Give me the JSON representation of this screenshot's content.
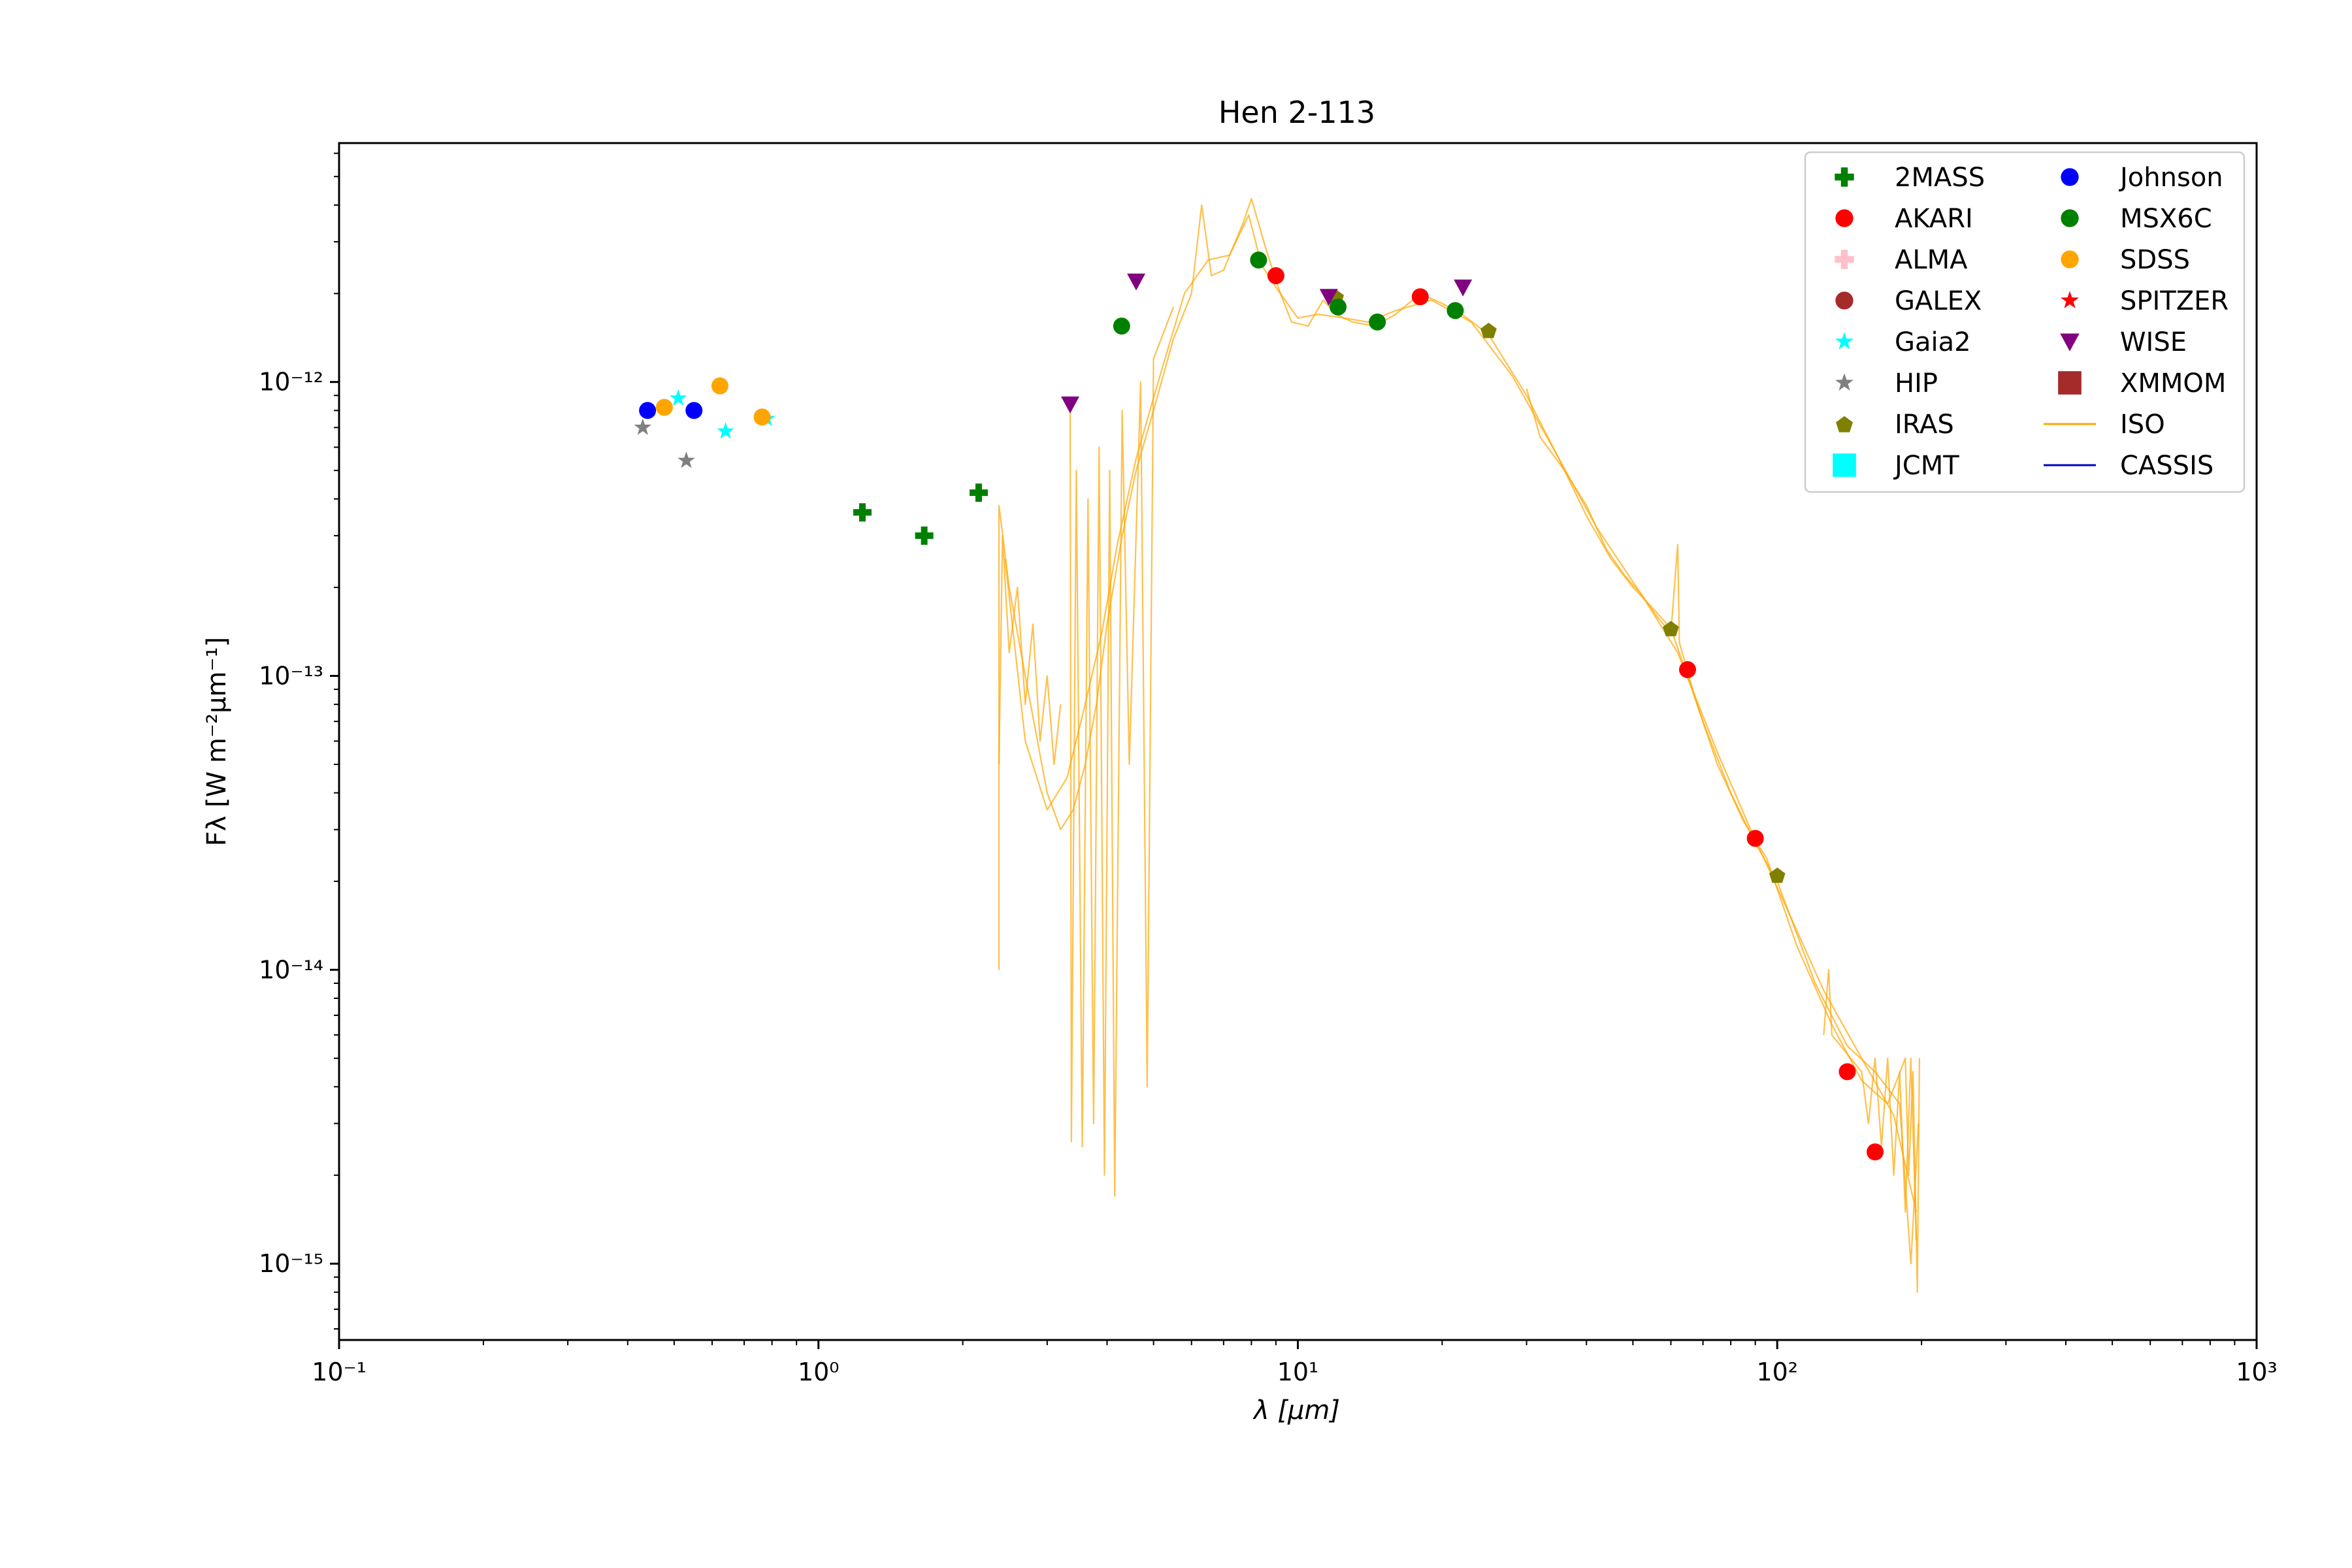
{
  "chart_data": {
    "type": "scatter",
    "title": "Hen 2-113",
    "xlabel": "λ [μm]",
    "ylabel": "Fλ [W m⁻²μm⁻¹]",
    "xscale": "log",
    "yscale": "log",
    "xlim": [
      0.1,
      1000
    ],
    "ylim": [
      5.5e-16,
      6.5e-12
    ],
    "x_ticks": [
      {
        "value": 0.1,
        "label": "10⁻¹"
      },
      {
        "value": 1,
        "label": "10⁰"
      },
      {
        "value": 10,
        "label": "10¹"
      },
      {
        "value": 100,
        "label": "10²"
      },
      {
        "value": 1000,
        "label": "10³"
      }
    ],
    "y_ticks": [
      {
        "value": 1e-15,
        "label": "10⁻¹⁵"
      },
      {
        "value": 1e-14,
        "label": "10⁻¹⁴"
      },
      {
        "value": 1e-13,
        "label": "10⁻¹³"
      },
      {
        "value": 1e-12,
        "label": "10⁻¹²"
      }
    ],
    "grid": false,
    "legend_position": "top-right",
    "legend_columns": 2,
    "series": [
      {
        "name": "2MASS",
        "marker": "plus",
        "color": "#008000",
        "points": [
          [
            1.235,
            3.6e-13
          ],
          [
            1.662,
            3e-13
          ],
          [
            2.159,
            4.2e-13
          ]
        ]
      },
      {
        "name": "AKARI",
        "marker": "circle",
        "color": "#ff0000",
        "points": [
          [
            9.0,
            2.3e-12
          ],
          [
            18.0,
            1.95e-12
          ],
          [
            65.0,
            1.05e-13
          ],
          [
            90.0,
            2.8e-14
          ],
          [
            140.0,
            4.5e-15
          ],
          [
            160.0,
            2.4e-15
          ]
        ]
      },
      {
        "name": "ALMA",
        "marker": "plus",
        "color": "#ffc0cb",
        "points": []
      },
      {
        "name": "GALEX",
        "marker": "circle",
        "color": "#a52a2a",
        "points": []
      },
      {
        "name": "Gaia2",
        "marker": "star",
        "color": "#00ffff",
        "points": [
          [
            0.51,
            8.8e-13
          ],
          [
            0.64,
            6.8e-13
          ],
          [
            0.78,
            7.5e-13
          ]
        ]
      },
      {
        "name": "HIP",
        "marker": "star",
        "color": "#808080",
        "points": [
          [
            0.43,
            7e-13
          ],
          [
            0.53,
            5.4e-13
          ]
        ]
      },
      {
        "name": "IRAS",
        "marker": "pentagon",
        "color": "#808000",
        "points": [
          [
            12.0,
            1.95e-12
          ],
          [
            25.0,
            1.5e-12
          ],
          [
            60.0,
            1.45e-13
          ],
          [
            100.0,
            2.1e-14
          ]
        ]
      },
      {
        "name": "JCMT",
        "marker": "square",
        "color": "#00ffff",
        "points": []
      },
      {
        "name": "Johnson",
        "marker": "circle",
        "color": "#0000ff",
        "points": [
          [
            0.44,
            8e-13
          ],
          [
            0.55,
            8e-13
          ]
        ]
      },
      {
        "name": "MSX6C",
        "marker": "circle",
        "color": "#008000",
        "points": [
          [
            4.29,
            1.55e-12
          ],
          [
            8.28,
            2.6e-12
          ],
          [
            12.13,
            1.8e-12
          ],
          [
            14.65,
            1.6e-12
          ],
          [
            21.3,
            1.75e-12
          ]
        ]
      },
      {
        "name": "SDSS",
        "marker": "circle",
        "color": "#ffa500",
        "points": [
          [
            0.477,
            8.2e-13
          ],
          [
            0.623,
            9.7e-13
          ],
          [
            0.763,
            7.6e-13
          ]
        ]
      },
      {
        "name": "SPITZER",
        "marker": "star",
        "color": "#ff0000",
        "points": []
      },
      {
        "name": "WISE",
        "marker": "triangle-down",
        "color": "#800080",
        "points": [
          [
            3.35,
            8.4e-13
          ],
          [
            4.6,
            2.2e-12
          ],
          [
            11.6,
            1.95e-12
          ],
          [
            22.1,
            2.1e-12
          ]
        ]
      },
      {
        "name": "XMMOM",
        "marker": "square",
        "color": "#a52a2a",
        "points": []
      },
      {
        "name": "ISO",
        "marker": "line",
        "color": "#ffa500",
        "lines": [
          [
            [
              2.38,
              1e-14
            ],
            [
              2.38,
              3.8e-13
            ],
            [
              2.5,
              2e-13
            ],
            [
              2.7,
              1e-13
            ],
            [
              3.0,
              4e-14
            ],
            [
              3.2,
              3e-14
            ],
            [
              3.4,
              3.5e-14
            ],
            [
              3.6,
              5e-14
            ],
            [
              3.8,
              8e-14
            ],
            [
              4.0,
              1.5e-13
            ],
            [
              4.3,
              3e-13
            ],
            [
              4.6,
              5e-13
            ],
            [
              5.0,
              8e-13
            ],
            [
              5.5,
              1.4e-12
            ],
            [
              6.0,
              2e-12
            ],
            [
              6.3,
              4e-12
            ],
            [
              6.6,
              2.3e-12
            ],
            [
              7.0,
              2.4e-12
            ],
            [
              7.7,
              3.5e-12
            ],
            [
              8.0,
              4.2e-12
            ],
            [
              8.6,
              2.8e-12
            ],
            [
              9.2,
              2e-12
            ],
            [
              9.7,
              1.6e-12
            ],
            [
              10.5,
              1.55e-12
            ],
            [
              11.3,
              1.9e-12
            ],
            [
              12.0,
              1.7e-12
            ],
            [
              13.0,
              1.6e-12
            ],
            [
              14.5,
              1.55e-12
            ],
            [
              16.0,
              1.7e-12
            ],
            [
              18.0,
              2e-12
            ],
            [
              20.0,
              1.85e-12
            ],
            [
              22.0,
              1.7e-12
            ],
            [
              25.0,
              1.45e-12
            ],
            [
              30.0,
              9e-13
            ],
            [
              35.0,
              5.5e-13
            ],
            [
              40.0,
              3.5e-13
            ],
            [
              45.0,
              2.5e-13
            ],
            [
              50.0,
              2e-13
            ],
            [
              55.0,
              1.7e-13
            ],
            [
              60.0,
              1.45e-13
            ],
            [
              70.0,
              7e-14
            ],
            [
              80.0,
              4e-14
            ],
            [
              90.0,
              2.7e-14
            ],
            [
              100.0,
              2e-14
            ],
            [
              120.0,
              9e-15
            ],
            [
              140.0,
              5.5e-15
            ],
            [
              160.0,
              4.5e-15
            ],
            [
              180.0,
              3.5e-15
            ],
            [
              190.0,
              1e-15
            ],
            [
              197.0,
              3e-15
            ]
          ],
          [
            [
              2.45,
              2.5e-13
            ],
            [
              2.7,
              6e-14
            ],
            [
              3.0,
              3.5e-14
            ],
            [
              3.3,
              4.5e-14
            ],
            [
              3.6,
              8e-14
            ],
            [
              3.9,
              1.4e-13
            ],
            [
              4.2,
              2.8e-13
            ],
            [
              4.6,
              5.5e-13
            ],
            [
              5.2,
              1.1e-12
            ],
            [
              5.8,
              2e-12
            ],
            [
              6.5,
              2.6e-12
            ],
            [
              7.2,
              2.7e-12
            ],
            [
              7.9,
              3.7e-12
            ],
            [
              8.4,
              2.5e-12
            ],
            [
              9.0,
              2.1e-12
            ],
            [
              10.0,
              1.65e-12
            ],
            [
              11.0,
              1.7e-12
            ],
            [
              12.5,
              1.65e-12
            ],
            [
              14.0,
              1.6e-12
            ],
            [
              16.0,
              1.75e-12
            ],
            [
              19.0,
              1.9e-12
            ],
            [
              23.0,
              1.6e-12
            ],
            [
              28.0,
              1.05e-12
            ],
            [
              34.0,
              6e-13
            ],
            [
              42.0,
              3.2e-13
            ],
            [
              52.0,
              1.9e-13
            ],
            [
              62.0,
              1.2e-13
            ],
            [
              75.0,
              5.5e-14
            ],
            [
              88.0,
              3e-14
            ],
            [
              105.0,
              1.6e-14
            ],
            [
              125.0,
              8.5e-15
            ],
            [
              150.0,
              5e-15
            ],
            [
              175.0,
              3.2e-15
            ],
            [
              195.0,
              1.5e-15
            ]
          ],
          [
            [
              3.35,
              8.5e-13
            ],
            [
              3.37,
              2.6e-15
            ],
            [
              3.45,
              5e-13
            ],
            [
              3.55,
              2.5e-15
            ],
            [
              3.65,
              4e-13
            ],
            [
              3.75,
              3e-15
            ],
            [
              3.85,
              6e-13
            ],
            [
              3.95,
              2e-15
            ],
            [
              4.05,
              5e-13
            ],
            [
              4.15,
              1.7e-15
            ],
            [
              4.3,
              8e-13
            ],
            [
              4.45,
              5e-14
            ],
            [
              4.7,
              1e-12
            ],
            [
              4.85,
              4e-15
            ],
            [
              5.0,
              1.2e-12
            ],
            [
              5.5,
              1.8e-12
            ]
          ],
          [
            [
              2.38,
              5e-14
            ],
            [
              2.42,
              3e-13
            ],
            [
              2.5,
              1.2e-13
            ],
            [
              2.6,
              2e-13
            ],
            [
              2.7,
              8e-14
            ],
            [
              2.8,
              1.5e-13
            ],
            [
              2.9,
              6e-14
            ],
            [
              3.0,
              1e-13
            ],
            [
              3.1,
              5e-14
            ],
            [
              3.2,
              8e-14
            ]
          ],
          [
            [
              30.0,
              9.5e-13
            ],
            [
              32.0,
              6.5e-13
            ],
            [
              36.0,
              5e-13
            ],
            [
              40.0,
              3.8e-13
            ],
            [
              44.0,
              2.7e-13
            ],
            [
              48.0,
              2.2e-13
            ],
            [
              52.0,
              1.9e-13
            ],
            [
              56.0,
              1.6e-13
            ],
            [
              60.0,
              1.4e-13
            ],
            [
              62.0,
              2.8e-13
            ],
            [
              62.5,
              1.3e-13
            ],
            [
              68.0,
              8e-14
            ],
            [
              75.0,
              5e-14
            ],
            [
              85.0,
              3.2e-14
            ],
            [
              95.0,
              2.4e-14
            ],
            [
              110.0,
              1.2e-14
            ],
            [
              130.0,
              6.5e-15
            ],
            [
              150.0,
              4.2e-15
            ],
            [
              170.0,
              3.5e-15
            ],
            [
              185.0,
              5e-15
            ],
            [
              188.0,
              2e-15
            ],
            [
              192.0,
              4.5e-15
            ],
            [
              196.0,
              8e-16
            ],
            [
              198.0,
              5e-15
            ]
          ],
          [
            [
              125.0,
              6e-15
            ],
            [
              128.0,
              1e-14
            ],
            [
              130.0,
              6e-15
            ],
            [
              150.0,
              4.5e-15
            ],
            [
              155.0,
              3e-15
            ],
            [
              160.0,
              5e-15
            ],
            [
              165.0,
              2.5e-15
            ],
            [
              170.0,
              5e-15
            ],
            [
              175.0,
              2e-15
            ],
            [
              180.0,
              4.5e-15
            ],
            [
              185.0,
              1.5e-15
            ],
            [
              190.0,
              5e-15
            ],
            [
              195.0,
              1.2e-15
            ]
          ]
        ]
      },
      {
        "name": "CASSIS",
        "marker": "line",
        "color": "#0000cd",
        "lines": []
      }
    ]
  }
}
